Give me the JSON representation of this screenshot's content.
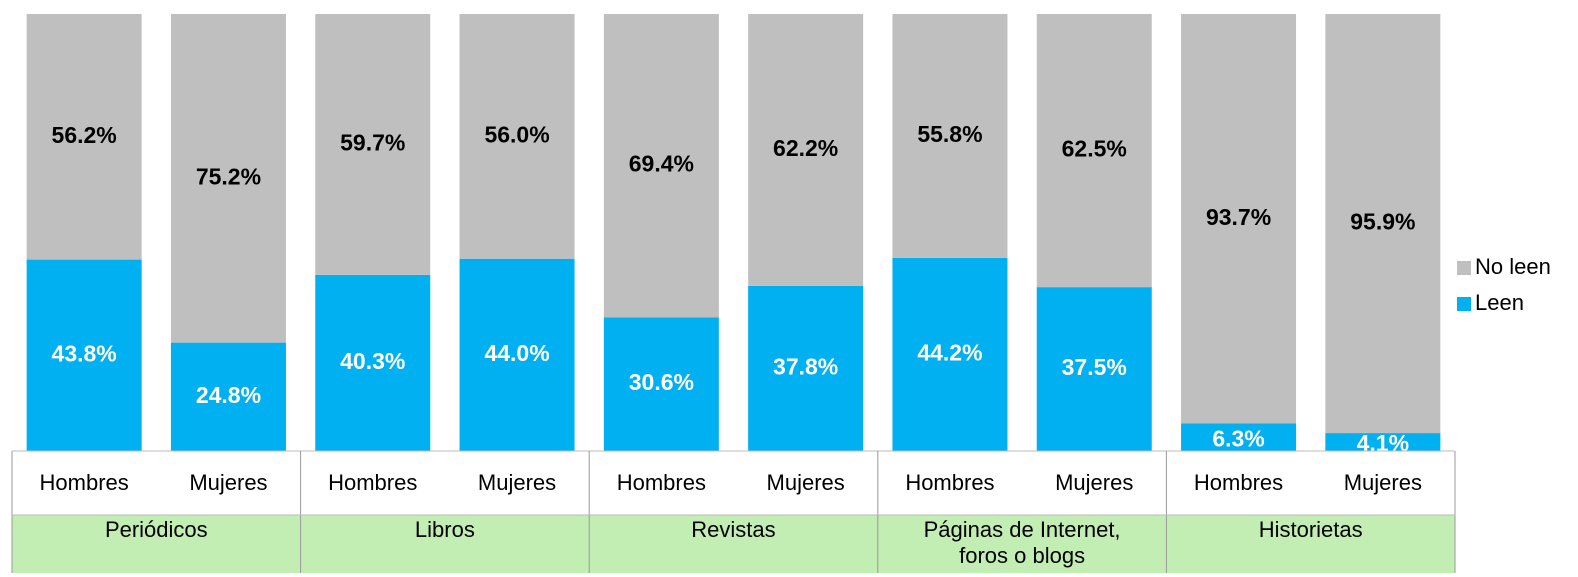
{
  "chart_data": {
    "type": "stacked_bar_100",
    "groups": [
      "Periódicos",
      "Libros",
      "Revistas",
      "Páginas de Internet, foros o blogs",
      "Historietas"
    ],
    "categories": [
      "Hombres",
      "Mujeres",
      "Hombres",
      "Mujeres",
      "Hombres",
      "Mujeres",
      "Hombres",
      "Mujeres",
      "Hombres",
      "Mujeres"
    ],
    "series": [
      {
        "name": "Leen",
        "color": "#00b0f0",
        "values": [
          43.8,
          24.8,
          40.3,
          44.0,
          30.6,
          37.8,
          44.2,
          37.5,
          6.3,
          4.1
        ],
        "value_labels": [
          "43.8%",
          "24.8%",
          "40.3%",
          "44.0%",
          "30.6%",
          "37.8%",
          "44.2%",
          "37.5%",
          "6.3%",
          "4.1%"
        ]
      },
      {
        "name": "No leen",
        "color": "#bfbfbf",
        "values": [
          56.2,
          75.2,
          59.7,
          56.0,
          69.4,
          62.2,
          55.8,
          62.5,
          93.7,
          95.9
        ],
        "value_labels": [
          "56.2%",
          "75.2%",
          "59.7%",
          "56.0%",
          "69.4%",
          "62.2%",
          "55.8%",
          "62.5%",
          "93.7%",
          "95.9%"
        ]
      }
    ],
    "legend": "right"
  }
}
